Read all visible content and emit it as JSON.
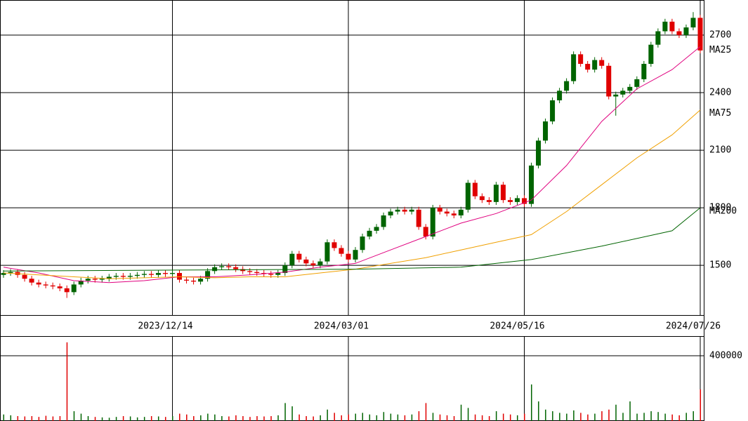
{
  "chart_data": [
    {
      "type": "candlestick",
      "up_color": "#006400",
      "down_color": "#e00000",
      "xlim": [
        -0.5,
        99.5
      ],
      "xticks": [
        {
          "value": 24,
          "label": "2023/12/14"
        },
        {
          "value": 49,
          "label": "2024/03/01"
        },
        {
          "value": 74,
          "label": "2024/05/16"
        },
        {
          "value": 99,
          "label": "2024/07/26"
        }
      ],
      "ylim": [
        1237,
        2883
      ],
      "yticks": [
        1500,
        1800,
        2100,
        2400,
        2700
      ],
      "grid": true,
      "open": [
        1450,
        1460,
        1465,
        1450,
        1430,
        1410,
        1400,
        1395,
        1390,
        1380,
        1360,
        1400,
        1420,
        1430,
        1425,
        1430,
        1440,
        1445,
        1440,
        1445,
        1450,
        1455,
        1450,
        1460,
        1455,
        1460,
        1425,
        1420,
        1415,
        1430,
        1470,
        1490,
        1495,
        1490,
        1480,
        1470,
        1465,
        1460,
        1455,
        1450,
        1460,
        1500,
        1560,
        1530,
        1510,
        1500,
        1520,
        1620,
        1590,
        1560,
        1530,
        1580,
        1650,
        1680,
        1700,
        1760,
        1780,
        1790,
        1780,
        1790,
        1700,
        1650,
        1800,
        1780,
        1770,
        1760,
        1790,
        1930,
        1860,
        1840,
        1830,
        1920,
        1840,
        1830,
        1850,
        1820,
        2020,
        2150,
        2250,
        2360,
        2410,
        2460,
        2600,
        2550,
        2520,
        2570,
        2540,
        2380,
        2390,
        2410,
        2430,
        2470,
        2550,
        2650,
        2720,
        2770,
        2720,
        2700,
        2740,
        2790
      ],
      "high": [
        1475,
        1480,
        1480,
        1465,
        1445,
        1425,
        1415,
        1410,
        1405,
        1395,
        1415,
        1435,
        1445,
        1445,
        1445,
        1455,
        1460,
        1460,
        1460,
        1465,
        1470,
        1470,
        1475,
        1475,
        1475,
        1475,
        1440,
        1435,
        1445,
        1485,
        1505,
        1510,
        1510,
        1505,
        1495,
        1485,
        1480,
        1475,
        1470,
        1475,
        1515,
        1575,
        1575,
        1545,
        1525,
        1535,
        1635,
        1635,
        1605,
        1575,
        1595,
        1665,
        1695,
        1715,
        1775,
        1795,
        1805,
        1805,
        1805,
        1805,
        1715,
        1815,
        1815,
        1795,
        1785,
        1805,
        1945,
        1945,
        1875,
        1855,
        1935,
        1935,
        1855,
        1865,
        1865,
        2035,
        2165,
        2265,
        2375,
        2425,
        2475,
        2615,
        2615,
        2565,
        2585,
        2585,
        2555,
        2405,
        2425,
        2445,
        2485,
        2565,
        2665,
        2735,
        2785,
        2785,
        2735,
        2755,
        2820,
        2805
      ],
      "low": [
        1435,
        1445,
        1435,
        1415,
        1395,
        1385,
        1380,
        1375,
        1365,
        1330,
        1345,
        1385,
        1405,
        1410,
        1410,
        1415,
        1425,
        1425,
        1425,
        1430,
        1435,
        1435,
        1435,
        1440,
        1440,
        1410,
        1405,
        1400,
        1400,
        1415,
        1455,
        1475,
        1475,
        1465,
        1455,
        1450,
        1445,
        1440,
        1435,
        1435,
        1445,
        1485,
        1515,
        1495,
        1485,
        1485,
        1505,
        1575,
        1545,
        1515,
        1515,
        1565,
        1635,
        1665,
        1685,
        1745,
        1765,
        1765,
        1765,
        1685,
        1635,
        1635,
        1765,
        1755,
        1745,
        1745,
        1775,
        1845,
        1825,
        1815,
        1815,
        1825,
        1815,
        1815,
        1805,
        1805,
        2005,
        2135,
        2235,
        2345,
        2395,
        2445,
        2535,
        2505,
        2505,
        2525,
        2365,
        2280,
        2375,
        2395,
        2415,
        2455,
        2535,
        2635,
        2705,
        2705,
        2685,
        2685,
        2725,
        2605
      ],
      "close": [
        1460,
        1465,
        1450,
        1430,
        1410,
        1400,
        1395,
        1390,
        1380,
        1360,
        1400,
        1420,
        1430,
        1425,
        1430,
        1440,
        1445,
        1440,
        1445,
        1450,
        1455,
        1450,
        1460,
        1455,
        1460,
        1425,
        1420,
        1415,
        1430,
        1470,
        1490,
        1495,
        1490,
        1480,
        1470,
        1465,
        1460,
        1455,
        1450,
        1460,
        1500,
        1560,
        1530,
        1510,
        1500,
        1520,
        1620,
        1590,
        1560,
        1530,
        1580,
        1650,
        1680,
        1700,
        1760,
        1780,
        1790,
        1780,
        1790,
        1700,
        1650,
        1800,
        1780,
        1770,
        1760,
        1790,
        1930,
        1860,
        1840,
        1830,
        1920,
        1840,
        1830,
        1850,
        1820,
        2020,
        2150,
        2250,
        2360,
        2410,
        2460,
        2600,
        2550,
        2520,
        2570,
        2540,
        2380,
        2390,
        2410,
        2430,
        2470,
        2550,
        2650,
        2720,
        2770,
        2720,
        2700,
        2740,
        2790,
        2620
      ],
      "series": [
        {
          "name": "MA25",
          "color": "#e0007f",
          "x": [
            0,
            5,
            10,
            15,
            20,
            25,
            30,
            35,
            40,
            45,
            50,
            55,
            60,
            65,
            70,
            75,
            80,
            85,
            90,
            95,
            99
          ],
          "values": [
            1490,
            1460,
            1420,
            1410,
            1420,
            1440,
            1440,
            1450,
            1465,
            1490,
            1510,
            1580,
            1650,
            1720,
            1770,
            1840,
            2020,
            2250,
            2420,
            2520,
            2640
          ]
        },
        {
          "name": "MA75",
          "color": "#f0a000",
          "x": [
            0,
            5,
            10,
            15,
            20,
            25,
            30,
            35,
            40,
            45,
            50,
            55,
            60,
            65,
            70,
            75,
            80,
            85,
            90,
            95,
            99
          ],
          "values": [
            1460,
            1450,
            1440,
            1430,
            1435,
            1440,
            1435,
            1440,
            1440,
            1460,
            1480,
            1510,
            1540,
            1580,
            1620,
            1660,
            1780,
            1920,
            2060,
            2180,
            2310
          ]
        },
        {
          "name": "MA200",
          "color": "#006400",
          "x": [
            0,
            25,
            50,
            65,
            75,
            85,
            95,
            99
          ],
          "values": [
            1470,
            1475,
            1480,
            1490,
            1530,
            1600,
            1680,
            1800
          ]
        }
      ]
    },
    {
      "type": "bar",
      "xlim": [
        -0.5,
        99.5
      ],
      "ylim": [
        0,
        516000
      ],
      "yticks": [
        400000
      ],
      "grid": true,
      "values": [
        40000,
        35000,
        30000,
        28000,
        30000,
        25000,
        32000,
        28000,
        30000,
        482000,
        60000,
        45000,
        30000,
        25000,
        22000,
        20000,
        25000,
        30000,
        28000,
        22000,
        25000,
        30000,
        28000,
        25000,
        30000,
        45000,
        40000,
        30000,
        35000,
        45000,
        40000,
        30000,
        28000,
        35000,
        30000,
        25000,
        30000,
        28000,
        30000,
        35000,
        110000,
        90000,
        40000,
        30000,
        28000,
        35000,
        70000,
        50000,
        35000,
        40000,
        45000,
        50000,
        40000,
        35000,
        55000,
        45000,
        40000,
        35000,
        40000,
        60000,
        110000,
        50000,
        40000,
        35000,
        30000,
        100000,
        80000,
        40000,
        35000,
        30000,
        60000,
        45000,
        40000,
        35000,
        45000,
        224000,
        120000,
        70000,
        60000,
        50000,
        45000,
        65000,
        50000,
        40000,
        45000,
        60000,
        70000,
        100000,
        50000,
        120000,
        45000,
        50000,
        60000,
        55000,
        45000,
        40000,
        35000,
        50000,
        60000,
        194000
      ]
    }
  ]
}
